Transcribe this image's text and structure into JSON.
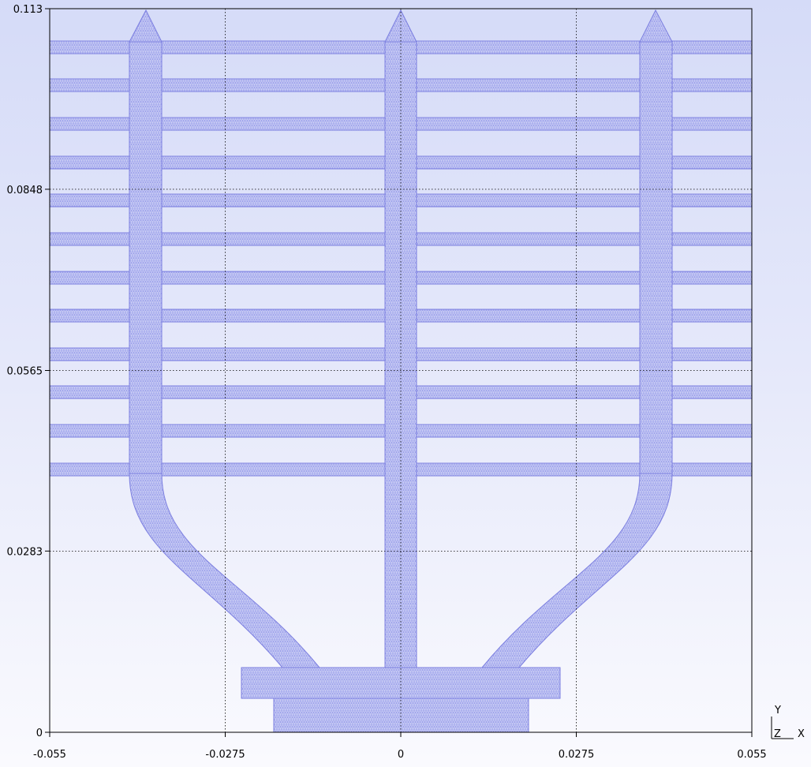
{
  "chart_data": {
    "type": "mesh-plot",
    "x_ticks": [
      "-0.055",
      "-0.0275",
      "0",
      "0.0275",
      "0.055"
    ],
    "y_ticks": [
      "0",
      "0.0283",
      "0.0565",
      "0.0848",
      "0.113"
    ],
    "xlim": [
      -0.055,
      0.055
    ],
    "ylim": [
      0,
      0.113
    ],
    "grid": true,
    "channel_count": 3,
    "rib_count": 12
  },
  "axis_triad": {
    "y": "Y",
    "z": "Z",
    "x": "X"
  },
  "colors": {
    "mesh_fill": "#ccd0f5",
    "mesh_line": "#8c8ee6",
    "frame": "#000000",
    "grid": "#000000"
  }
}
